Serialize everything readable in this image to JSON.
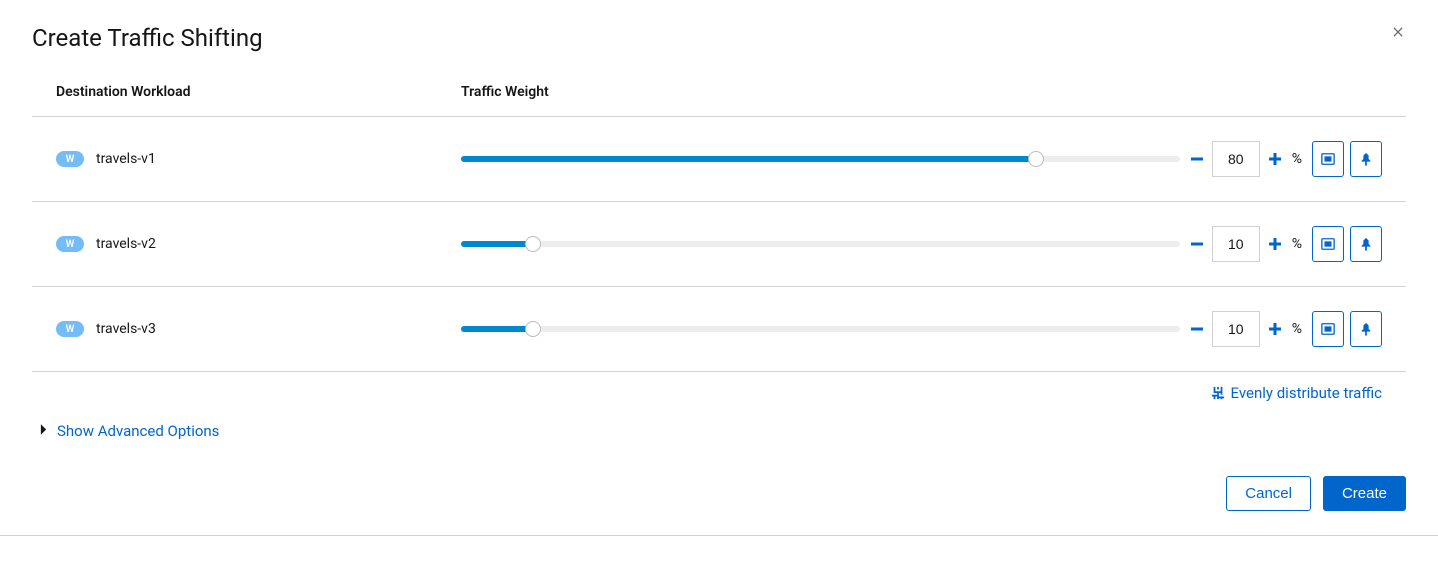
{
  "modal": {
    "title": "Create Traffic Shifting",
    "columns": {
      "workload": "Destination Workload",
      "weight": "Traffic Weight"
    },
    "workloads": [
      {
        "badge": "W",
        "name": "travels-v1",
        "weight": 80
      },
      {
        "badge": "W",
        "name": "travels-v2",
        "weight": 10
      },
      {
        "badge": "W",
        "name": "travels-v3",
        "weight": 10
      }
    ],
    "percent_sign": "%",
    "distribute_label": "Evenly distribute traffic",
    "advanced_label": "Show Advanced Options",
    "cancel_label": "Cancel",
    "create_label": "Create"
  },
  "styling": {
    "accent_color": "#0066cc",
    "slider_fill_color": "#0088ce",
    "slider_track_color": "#ededed",
    "badge_color": "#73bcf7",
    "border_color": "#d2d2d2",
    "text_color": "#151515",
    "slider_max": 100
  }
}
